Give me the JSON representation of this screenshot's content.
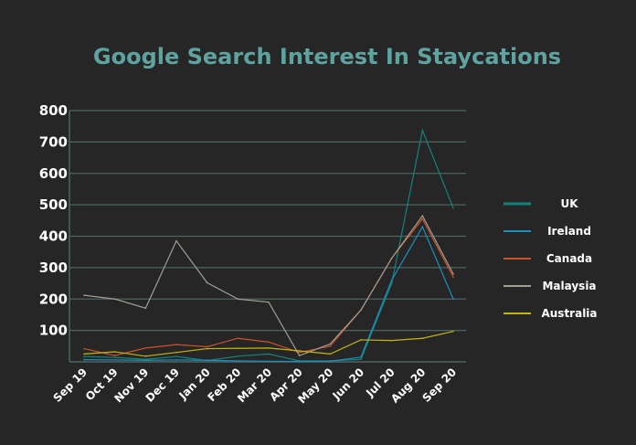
{
  "chart_data": {
    "type": "line",
    "title": "Google Search Interest In Staycations",
    "xlabel": "",
    "ylabel": "",
    "ylim": [
      0,
      800
    ],
    "yticks": [
      100,
      200,
      300,
      400,
      500,
      600,
      700,
      800
    ],
    "grid": true,
    "legend_position": "right",
    "categories": [
      "Sep 19",
      "Oct 19",
      "Nov 19",
      "Dec 19",
      "Jan 20",
      "Feb 20",
      "Mar 20",
      "Apr 20",
      "May 20",
      "Jun 20",
      "Jul 20",
      "Aug 20",
      "Sep 20"
    ],
    "series": [
      {
        "name": "UK",
        "color": "#14837c",
        "values": [
          17,
          14,
          8,
          17,
          4,
          18,
          25,
          3,
          3,
          8,
          250,
          737,
          490
        ]
      },
      {
        "name": "Ireland",
        "color": "#1f8fbf",
        "values": [
          7,
          6,
          5,
          6,
          5,
          3,
          2,
          1,
          2,
          15,
          260,
          430,
          200
        ]
      },
      {
        "name": "Canada",
        "color": "#c9532c",
        "values": [
          42,
          20,
          44,
          55,
          48,
          75,
          63,
          30,
          50,
          165,
          330,
          455,
          270
        ]
      },
      {
        "name": "Malaysia",
        "color": "#a39e92",
        "values": [
          212,
          200,
          171,
          385,
          252,
          200,
          190,
          20,
          57,
          165,
          330,
          465,
          280
        ]
      },
      {
        "name": "Australia",
        "color": "#c2b512",
        "values": [
          25,
          32,
          18,
          30,
          42,
          43,
          44,
          35,
          25,
          70,
          68,
          75,
          97
        ]
      }
    ]
  }
}
